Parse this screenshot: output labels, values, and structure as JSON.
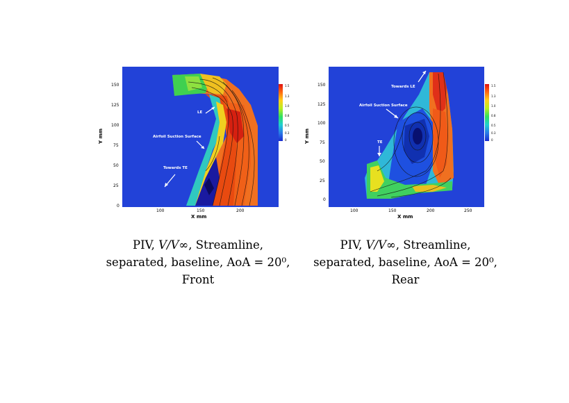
{
  "figures": [
    {
      "id": "front",
      "annotations": {
        "le": "LE",
        "suction": "Airfoil Suction Surface",
        "te": "Towards TE"
      },
      "xlabel": "X mm",
      "ylabel": "Y mm",
      "xticks": [
        "100",
        "150",
        "200"
      ],
      "yticks": [
        "150",
        "125",
        "100",
        "75",
        "50",
        "25",
        "0"
      ],
      "colorbar_ticks": [
        "1.5",
        "1.3",
        "1.0",
        "0.8",
        "0.5",
        "0.3",
        "0"
      ],
      "caption": {
        "line1_pre": "PIV, ",
        "math": "V/V∞",
        "line1_post": ", Streamline,",
        "line2": "separated, baseline, AoA = 20⁰,",
        "line3": "Front"
      }
    },
    {
      "id": "rear",
      "annotations": {
        "le": "Towards LE",
        "suction": "Airfoil Suction Surface",
        "te": "TE"
      },
      "xlabel": "X mm",
      "ylabel": "Y mm",
      "xticks": [
        "100",
        "150",
        "200",
        "250"
      ],
      "yticks": [
        "150",
        "125",
        "100",
        "75",
        "50",
        "25",
        "0"
      ],
      "colorbar_ticks": [
        "1.5",
        "1.3",
        "1.0",
        "0.8",
        "0.5",
        "0.3",
        "0"
      ],
      "caption": {
        "line1_pre": "PIV, ",
        "math": "V/V∞",
        "line1_post": ", Streamline,",
        "line2": "separated, baseline, AoA = 20⁰,",
        "line3": "Rear"
      }
    }
  ],
  "colors": {
    "background": "#1f3fd6",
    "high": "#e83010",
    "mid": "#ffb020",
    "low": "#30d060"
  }
}
